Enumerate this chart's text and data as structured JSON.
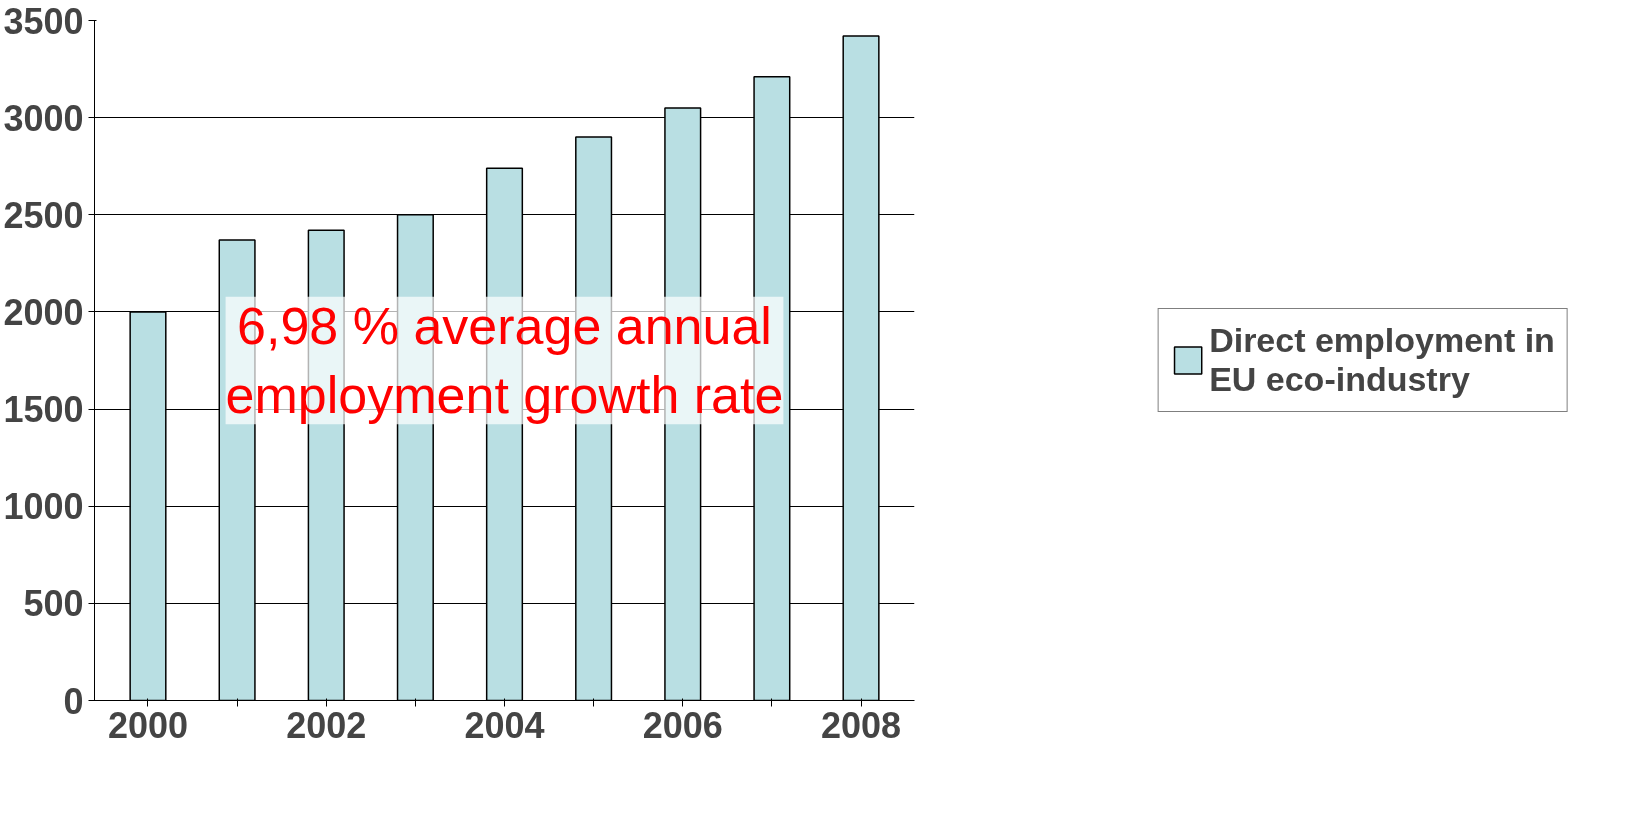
{
  "chart_data": {
    "type": "bar",
    "categories": [
      "2000",
      null,
      "2002",
      null,
      "2004",
      null,
      "2006",
      null,
      "2008"
    ],
    "series": [
      {
        "name": "Direct employment in EU eco-industry",
        "color": "#b9dfe3",
        "values": [
          2000,
          2370,
          2420,
          2500,
          2740,
          2900,
          3050,
          3210,
          3420
        ]
      }
    ],
    "ylim": [
      0,
      3500
    ],
    "yticks": [
      0,
      500,
      1000,
      1500,
      2000,
      2500,
      3000,
      3500
    ],
    "grid": "y",
    "legend": "right",
    "annotations": [
      "6,98 % average annual\nemployment growth rate"
    ]
  }
}
